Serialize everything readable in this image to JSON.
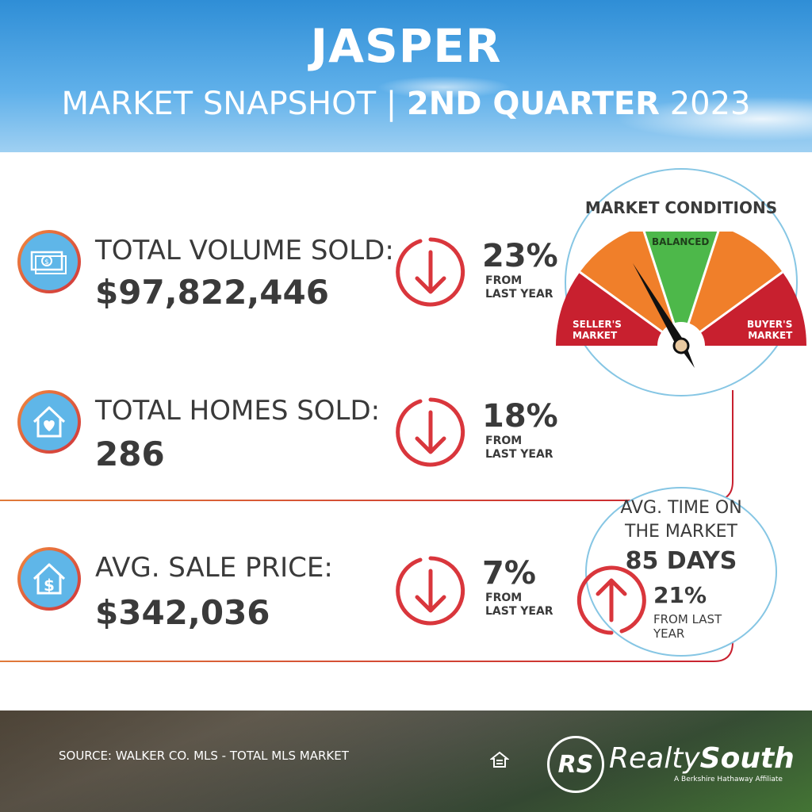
{
  "header": {
    "city": "JASPER",
    "subtitle_main": "MARKET SNAPSHOT",
    "subtitle_sep": " | ",
    "subtitle_quarter": "2ND QUARTER",
    "subtitle_year": " 2023"
  },
  "rows": [
    {
      "icon": "money-icon",
      "label": "TOTAL VOLUME SOLD:",
      "value": "$97,822,446",
      "change": "23%",
      "from": "FROM",
      "from2": "LAST YEAR",
      "direction": "down"
    },
    {
      "icon": "house-heart-icon",
      "label": "TOTAL HOMES SOLD:",
      "value": "286",
      "change": "18%",
      "from": "FROM",
      "from2": "LAST YEAR",
      "direction": "down"
    },
    {
      "icon": "house-dollar-icon",
      "label": "AVG. SALE PRICE:",
      "value": "$342,036",
      "change": "7%",
      "from": "FROM",
      "from2": "LAST YEAR",
      "direction": "down"
    }
  ],
  "gauge": {
    "title": "MARKET CONDITIONS",
    "left_label_1": "SELLER'S",
    "left_label_2": "MARKET",
    "center_label": "BALANCED",
    "right_label_1": "BUYER'S",
    "right_label_2": "MARKET",
    "colors": {
      "red": "#c8202f",
      "orange": "#f07f2a",
      "green": "#4db84a"
    }
  },
  "time_on_market": {
    "title_1": "AVG. TIME ON",
    "title_2": "THE MARKET",
    "days": "85 DAYS",
    "change": "21%",
    "from": "FROM LAST YEAR",
    "direction": "up"
  },
  "footer": {
    "source": "SOURCE: WALKER CO. MLS - TOTAL MLS MARKET",
    "logo_mark": "RS",
    "brand_light": "Realty",
    "brand_bold": "South",
    "affiliate": "A Berkshire Hathaway Affiliate"
  }
}
